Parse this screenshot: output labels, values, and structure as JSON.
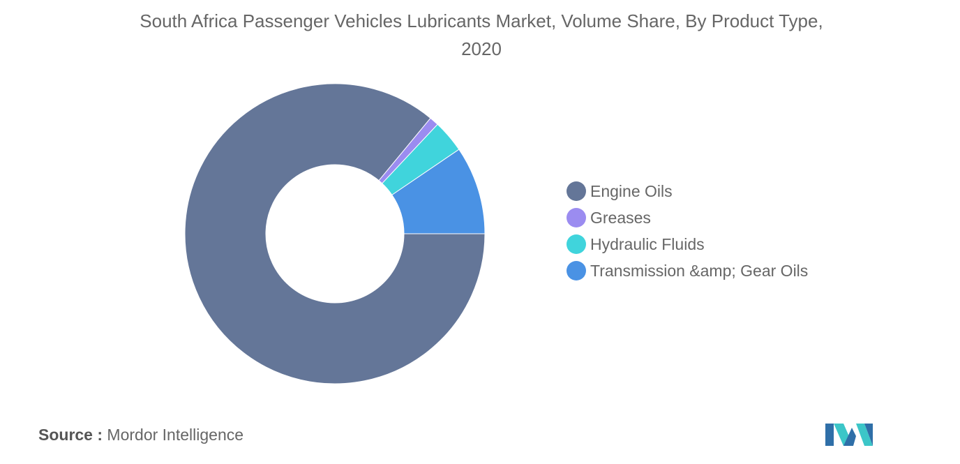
{
  "chart_data": {
    "type": "pie",
    "title": "South Africa Passenger Vehicles Lubricants Market, Volume Share, By Product Type, 2020",
    "categories": [
      "Engine Oils",
      "Greases",
      "Hydraulic Fluids",
      "Transmission &amp; Gear Oils"
    ],
    "values": [
      86.0,
      1.0,
      3.5,
      9.5
    ],
    "unit": "%",
    "colors": [
      "#647698",
      "#9b8cf0",
      "#40d4dc",
      "#4a92e4"
    ],
    "legend_position": "right",
    "donut": true
  },
  "source": {
    "label": "Source :",
    "text": "Mordor Intelligence"
  },
  "logo": {
    "icon": "mordor-intelligence-logo-icon",
    "colors": [
      "#2f6fa8",
      "#3cc6c8"
    ]
  }
}
